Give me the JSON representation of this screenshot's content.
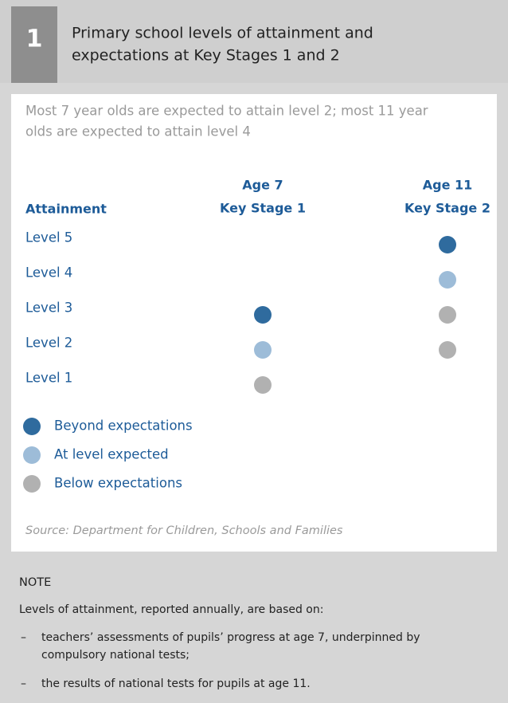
{
  "header": {
    "number": "1",
    "title": [
      "Primary school levels of attainment and",
      "expectations at Key Stages 1 and 2"
    ]
  },
  "subtitle": [
    "Most 7 year olds are expected to attain level 2; most 11 year",
    "olds are expected to attain level 4"
  ],
  "table": {
    "row_header": "Attainment",
    "columns": [
      {
        "age": "Age 7",
        "stage": "Key Stage 1"
      },
      {
        "age": "Age 11",
        "stage": "Key Stage 2"
      }
    ],
    "rows": [
      {
        "label": "Level 5",
        "cells": [
          null,
          0
        ]
      },
      {
        "label": "Level 4",
        "cells": [
          null,
          1
        ]
      },
      {
        "label": "Level 3",
        "cells": [
          0,
          2
        ]
      },
      {
        "label": "Level 2",
        "cells": [
          1,
          2
        ]
      },
      {
        "label": "Level 1",
        "cells": [
          2,
          null
        ]
      }
    ]
  },
  "legend": [
    {
      "label": "Beyond expectations",
      "color": "#2f6b9e"
    },
    {
      "label": "At level expected",
      "color": "#9dbcd8"
    },
    {
      "label": "Below expectations",
      "color": "#b1b1b1"
    }
  ],
  "source": "Source: Department for Children, Schools and Families",
  "note": {
    "title": "NOTE",
    "intro": "Levels of attainment, reported annually, are based on:",
    "items": [
      [
        "teachers’ assessments of pupils’ progress at age 7, underpinned by",
        "compulsory national tests;"
      ],
      [
        "the results of national tests for pupils at age 11."
      ]
    ],
    "bullet": "–"
  }
}
